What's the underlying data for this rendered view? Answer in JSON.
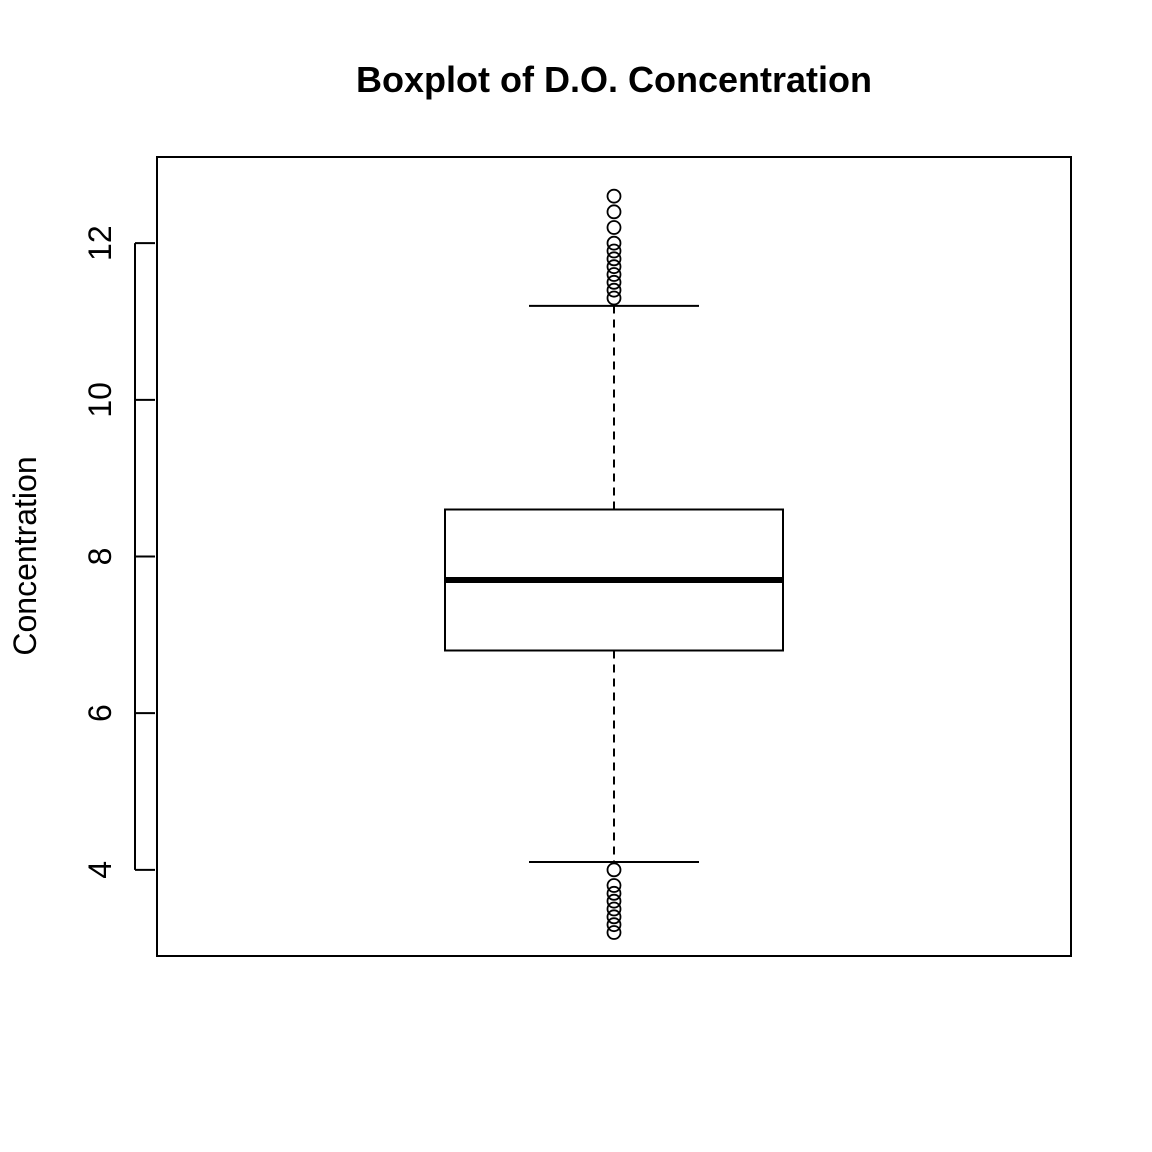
{
  "chart_data": {
    "type": "boxplot",
    "title": "Boxplot of D.O. Concentration",
    "ylabel": "Concentration",
    "xlabel": "",
    "ylim": [
      2.9,
      13.1
    ],
    "yticks": [
      4,
      6,
      8,
      10,
      12
    ],
    "grid": false,
    "box": {
      "lower_whisker": 4.1,
      "q1": 6.8,
      "median": 7.7,
      "q3": 8.6,
      "upper_whisker": 11.2
    },
    "outliers_high": [
      11.3,
      11.4,
      11.5,
      11.6,
      11.7,
      11.8,
      11.9,
      12.0,
      12.2,
      12.4,
      12.6
    ],
    "outliers_low": [
      3.2,
      3.3,
      3.4,
      3.5,
      3.6,
      3.7,
      3.8,
      4.0
    ]
  }
}
